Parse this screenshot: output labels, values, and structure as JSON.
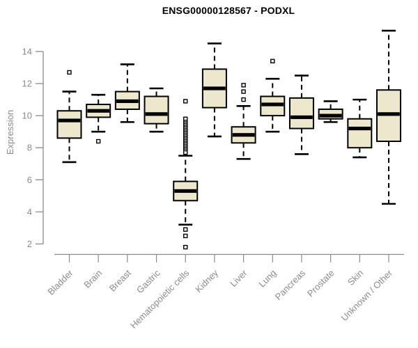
{
  "chart_data": {
    "type": "boxplot",
    "title": "ENSG00000128567 - PODXL",
    "ylabel": "Expression",
    "xlabel": "",
    "ylim": [
      2,
      14
    ],
    "yticks": [
      2,
      4,
      6,
      8,
      10,
      12,
      14
    ],
    "grid": false,
    "legend": "none",
    "box_fill_color": "#EDE8CD",
    "box_line_color": "#000000",
    "axis_color": "#8B8B8B",
    "categories": [
      "Bladder",
      "Brain",
      "Breast",
      "Gastric",
      "Hematopoietic cells",
      "Kidney",
      "Liver",
      "Lung",
      "Pancreas",
      "Prostate",
      "Skin",
      "Unknown / Other"
    ],
    "series": [
      {
        "category": "Bladder",
        "whisker_low": 7.1,
        "q1": 8.6,
        "median": 9.7,
        "q3": 10.3,
        "whisker_high": 11.5,
        "outliers": [
          12.7
        ]
      },
      {
        "category": "Brain",
        "whisker_low": 9.0,
        "q1": 9.9,
        "median": 10.3,
        "q3": 10.7,
        "whisker_high": 11.3,
        "outliers": [
          8.4
        ]
      },
      {
        "category": "Breast",
        "whisker_low": 9.6,
        "q1": 10.4,
        "median": 10.9,
        "q3": 11.5,
        "whisker_high": 13.2,
        "outliers": []
      },
      {
        "category": "Gastric",
        "whisker_low": 9.0,
        "q1": 9.5,
        "median": 10.1,
        "q3": 11.2,
        "whisker_high": 11.7,
        "outliers": []
      },
      {
        "category": "Hematopoietic cells",
        "whisker_low": 3.2,
        "q1": 4.7,
        "median": 5.3,
        "q3": 5.9,
        "whisker_high": 7.5,
        "outliers": [
          10.9,
          9.8,
          9.6,
          9.5,
          9.4,
          9.3,
          9.2,
          9.1,
          9.0,
          8.9,
          8.8,
          8.7,
          8.6,
          8.5,
          8.4,
          8.3,
          8.2,
          8.1,
          8.0,
          7.9,
          7.8,
          7.7,
          2.9,
          2.5,
          1.8
        ]
      },
      {
        "category": "Kidney",
        "whisker_low": 8.7,
        "q1": 10.5,
        "median": 11.7,
        "q3": 12.9,
        "whisker_high": 14.5,
        "outliers": []
      },
      {
        "category": "Liver",
        "whisker_low": 7.3,
        "q1": 8.3,
        "median": 8.8,
        "q3": 9.3,
        "whisker_high": 10.6,
        "outliers": [
          11.9,
          11.5,
          11.0
        ]
      },
      {
        "category": "Lung",
        "whisker_low": 9.0,
        "q1": 10.0,
        "median": 10.7,
        "q3": 11.2,
        "whisker_high": 12.3,
        "outliers": [
          13.4
        ]
      },
      {
        "category": "Pancreas",
        "whisker_low": 7.6,
        "q1": 9.2,
        "median": 9.9,
        "q3": 11.1,
        "whisker_high": 12.5,
        "outliers": []
      },
      {
        "category": "Prostate",
        "whisker_low": 9.6,
        "q1": 9.8,
        "median": 10.0,
        "q3": 10.4,
        "whisker_high": 10.9,
        "outliers": []
      },
      {
        "category": "Skin",
        "whisker_low": 7.4,
        "q1": 8.0,
        "median": 9.2,
        "q3": 9.8,
        "whisker_high": 11.0,
        "outliers": []
      },
      {
        "category": "Unknown / Other",
        "whisker_low": 4.5,
        "q1": 8.4,
        "median": 10.1,
        "q3": 11.6,
        "whisker_high": 15.3,
        "outliers": []
      }
    ]
  }
}
